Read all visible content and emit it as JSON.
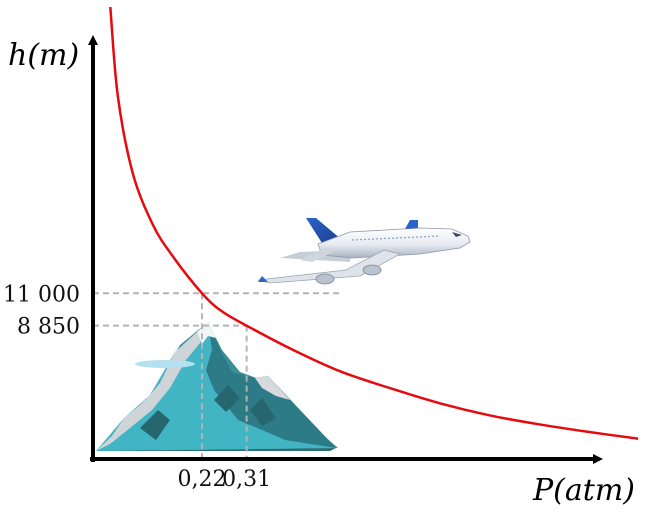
{
  "chart_data": {
    "type": "line",
    "title": "",
    "xlabel": "P(atm)",
    "ylabel": "h(m)",
    "series": [
      {
        "name": "",
        "color": "#e8090f",
        "points": [
          {
            "x": 0.035,
            "y": 30000
          },
          {
            "x": 0.05,
            "y": 24100
          },
          {
            "x": 0.08,
            "y": 19000
          },
          {
            "x": 0.12,
            "y": 15600
          },
          {
            "x": 0.16,
            "y": 13500
          },
          {
            "x": 0.22,
            "y": 11000
          },
          {
            "x": 0.26,
            "y": 9800
          },
          {
            "x": 0.31,
            "y": 8850
          },
          {
            "x": 0.4,
            "y": 7300
          },
          {
            "x": 0.5,
            "y": 5800
          },
          {
            "x": 0.6,
            "y": 4700
          },
          {
            "x": 0.7,
            "y": 3700
          },
          {
            "x": 0.8,
            "y": 2900
          },
          {
            "x": 0.9,
            "y": 2300
          },
          {
            "x": 1.0,
            "y": 1800
          },
          {
            "x": 1.1,
            "y": 1350
          }
        ]
      }
    ],
    "xticks": [
      {
        "value": 0.22,
        "label": "0,22"
      },
      {
        "value": 0.31,
        "label": "0,31"
      }
    ],
    "yticks": [
      {
        "value": 11000,
        "label": "11 000"
      },
      {
        "value": 8850,
        "label": "8 850"
      }
    ],
    "guides": [
      {
        "x": 0.22,
        "y": 11000,
        "horizontal_to_x": 0.31
      },
      {
        "x": 0.31,
        "y": 8850
      }
    ],
    "xlim": [
      0,
      1.12
    ],
    "ylim": [
      0,
      30000
    ],
    "grid": false,
    "legend": "none",
    "illustrations": [
      "mountain",
      "airplane"
    ]
  }
}
